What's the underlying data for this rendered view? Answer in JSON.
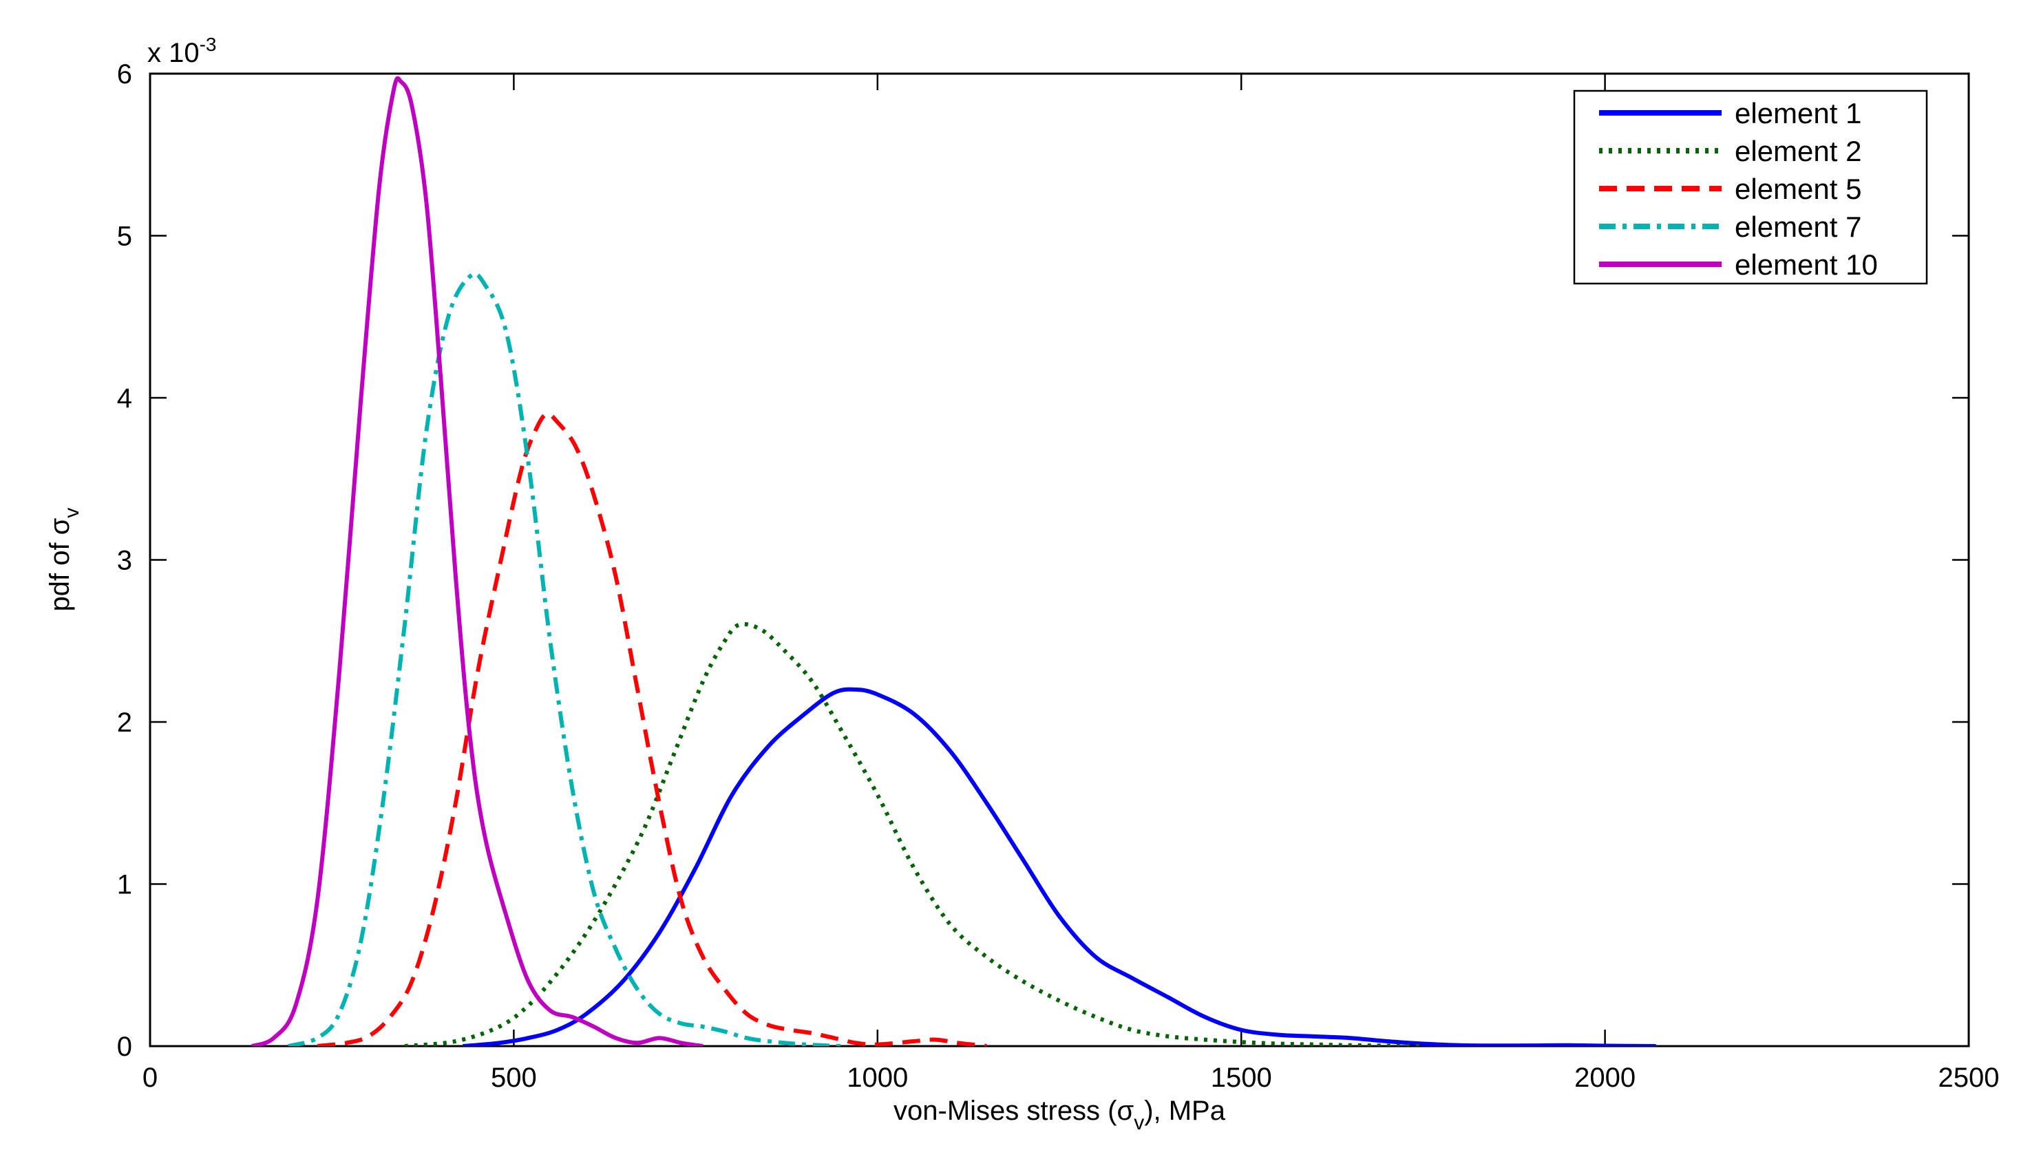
{
  "chart_data": {
    "type": "line",
    "title": "",
    "xlabel": "von-Mises stress (σv), MPa",
    "xlabel_parts": {
      "prefix": "von-Mises stress (",
      "symbol": "σ",
      "subscript": "v",
      "suffix": "), MPa"
    },
    "ylabel": "pdf of σv",
    "ylabel_parts": {
      "prefix": "pdf of ",
      "symbol": "σ",
      "subscript": "v"
    },
    "y_multiplier": {
      "base": "x 10",
      "exponent": "-3"
    },
    "xlim": [
      0,
      2500
    ],
    "ylim": [
      0,
      6
    ],
    "xticks": [
      0,
      500,
      1000,
      1500,
      2000,
      2500
    ],
    "yticks": [
      0,
      1,
      2,
      3,
      4,
      5,
      6
    ],
    "grid": false,
    "legend_position": "top-right",
    "series": [
      {
        "name": "element 1",
        "color": "#0000ff",
        "style": "solid",
        "points": [
          [
            430,
            0
          ],
          [
            480,
            0.02
          ],
          [
            520,
            0.05
          ],
          [
            560,
            0.1
          ],
          [
            600,
            0.2
          ],
          [
            650,
            0.4
          ],
          [
            700,
            0.7
          ],
          [
            750,
            1.1
          ],
          [
            800,
            1.55
          ],
          [
            850,
            1.85
          ],
          [
            900,
            2.05
          ],
          [
            940,
            2.18
          ],
          [
            970,
            2.2
          ],
          [
            1000,
            2.17
          ],
          [
            1050,
            2.05
          ],
          [
            1100,
            1.82
          ],
          [
            1150,
            1.5
          ],
          [
            1200,
            1.15
          ],
          [
            1250,
            0.8
          ],
          [
            1300,
            0.55
          ],
          [
            1350,
            0.42
          ],
          [
            1400,
            0.3
          ],
          [
            1450,
            0.18
          ],
          [
            1500,
            0.1
          ],
          [
            1550,
            0.07
          ],
          [
            1600,
            0.06
          ],
          [
            1650,
            0.05
          ],
          [
            1700,
            0.03
          ],
          [
            1750,
            0.015
          ],
          [
            1800,
            0.005
          ],
          [
            1850,
            0.003
          ],
          [
            1900,
            0.004
          ],
          [
            1950,
            0.005
          ],
          [
            2000,
            0.002
          ],
          [
            2070,
            0
          ]
        ]
      },
      {
        "name": "element 2",
        "color": "#006400",
        "style": "dotted",
        "points": [
          [
            350,
            0
          ],
          [
            420,
            0.03
          ],
          [
            480,
            0.12
          ],
          [
            520,
            0.25
          ],
          [
            560,
            0.45
          ],
          [
            600,
            0.7
          ],
          [
            640,
            1.0
          ],
          [
            680,
            1.35
          ],
          [
            720,
            1.8
          ],
          [
            760,
            2.25
          ],
          [
            790,
            2.5
          ],
          [
            810,
            2.6
          ],
          [
            840,
            2.57
          ],
          [
            870,
            2.45
          ],
          [
            910,
            2.25
          ],
          [
            950,
            1.95
          ],
          [
            1000,
            1.55
          ],
          [
            1050,
            1.1
          ],
          [
            1100,
            0.75
          ],
          [
            1150,
            0.55
          ],
          [
            1200,
            0.4
          ],
          [
            1250,
            0.28
          ],
          [
            1300,
            0.18
          ],
          [
            1350,
            0.1
          ],
          [
            1400,
            0.06
          ],
          [
            1450,
            0.04
          ],
          [
            1500,
            0.025
          ],
          [
            1550,
            0.015
          ],
          [
            1600,
            0.01
          ],
          [
            1650,
            0.005
          ],
          [
            1750,
            0
          ]
        ]
      },
      {
        "name": "element 5",
        "color": "#ff0000",
        "style": "dashed",
        "points": [
          [
            230,
            0
          ],
          [
            270,
            0.02
          ],
          [
            300,
            0.06
          ],
          [
            330,
            0.18
          ],
          [
            360,
            0.4
          ],
          [
            390,
            0.85
          ],
          [
            420,
            1.5
          ],
          [
            450,
            2.3
          ],
          [
            480,
            2.95
          ],
          [
            510,
            3.55
          ],
          [
            530,
            3.8
          ],
          [
            545,
            3.9
          ],
          [
            560,
            3.85
          ],
          [
            585,
            3.7
          ],
          [
            610,
            3.4
          ],
          [
            640,
            2.9
          ],
          [
            670,
            2.2
          ],
          [
            700,
            1.5
          ],
          [
            730,
            0.9
          ],
          [
            760,
            0.55
          ],
          [
            790,
            0.35
          ],
          [
            820,
            0.2
          ],
          [
            850,
            0.13
          ],
          [
            880,
            0.1
          ],
          [
            910,
            0.08
          ],
          [
            940,
            0.05
          ],
          [
            970,
            0.02
          ],
          [
            1000,
            0.01
          ],
          [
            1050,
            0.03
          ],
          [
            1080,
            0.04
          ],
          [
            1110,
            0.02
          ],
          [
            1150,
            0
          ]
        ]
      },
      {
        "name": "element 7",
        "color": "#00b3b3",
        "style": "dashdot",
        "points": [
          [
            190,
            0
          ],
          [
            230,
            0.05
          ],
          [
            260,
            0.2
          ],
          [
            290,
            0.65
          ],
          [
            320,
            1.5
          ],
          [
            350,
            2.6
          ],
          [
            380,
            3.8
          ],
          [
            410,
            4.5
          ],
          [
            440,
            4.75
          ],
          [
            460,
            4.7
          ],
          [
            490,
            4.4
          ],
          [
            520,
            3.6
          ],
          [
            550,
            2.5
          ],
          [
            580,
            1.6
          ],
          [
            610,
            0.95
          ],
          [
            640,
            0.6
          ],
          [
            670,
            0.35
          ],
          [
            700,
            0.2
          ],
          [
            730,
            0.14
          ],
          [
            760,
            0.12
          ],
          [
            790,
            0.09
          ],
          [
            820,
            0.05
          ],
          [
            850,
            0.03
          ],
          [
            900,
            0.01
          ],
          [
            950,
            0
          ]
        ]
      },
      {
        "name": "element 10",
        "color": "#c000c0",
        "style": "solid",
        "points": [
          [
            140,
            0
          ],
          [
            170,
            0.05
          ],
          [
            200,
            0.25
          ],
          [
            230,
            0.9
          ],
          [
            260,
            2.3
          ],
          [
            290,
            4.0
          ],
          [
            315,
            5.3
          ],
          [
            335,
            5.9
          ],
          [
            345,
            5.95
          ],
          [
            360,
            5.8
          ],
          [
            380,
            5.2
          ],
          [
            400,
            4.1
          ],
          [
            420,
            2.9
          ],
          [
            440,
            1.9
          ],
          [
            460,
            1.3
          ],
          [
            490,
            0.8
          ],
          [
            520,
            0.4
          ],
          [
            550,
            0.22
          ],
          [
            580,
            0.18
          ],
          [
            610,
            0.12
          ],
          [
            640,
            0.05
          ],
          [
            670,
            0.02
          ],
          [
            700,
            0.05
          ],
          [
            730,
            0.02
          ],
          [
            760,
            0
          ]
        ]
      }
    ]
  }
}
